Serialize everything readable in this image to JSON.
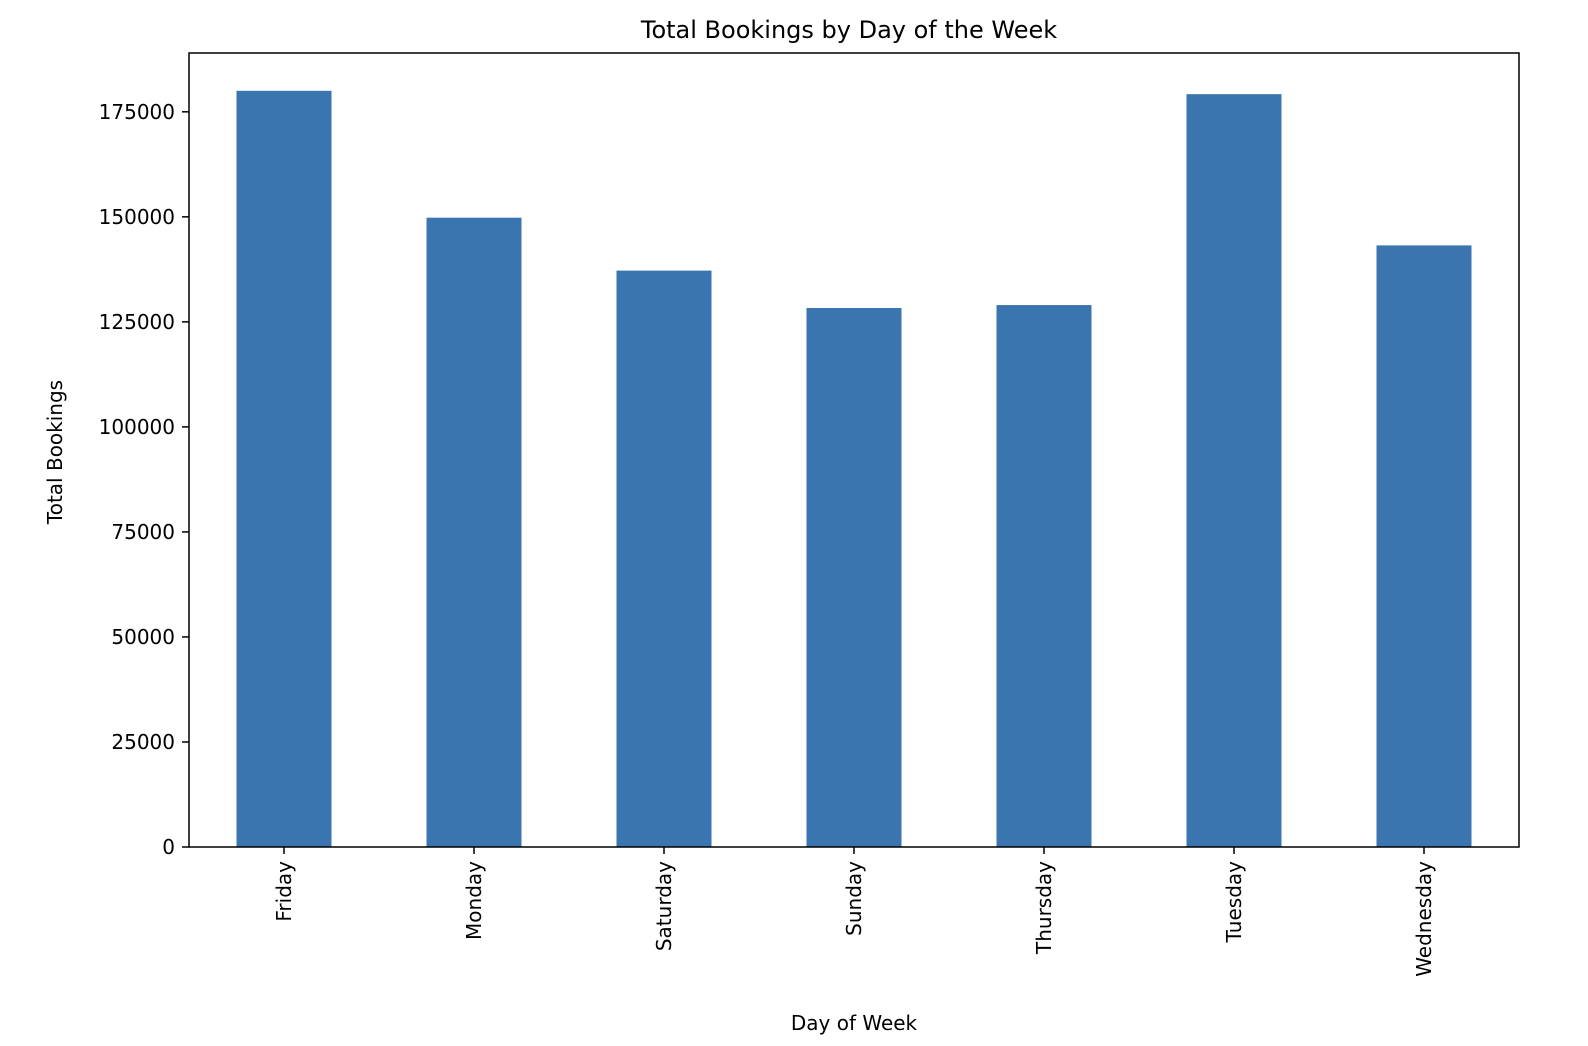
{
  "chart_data": {
    "type": "bar",
    "title": "Total Bookings by Day of the Week",
    "xlabel": "Day of Week",
    "ylabel": "Total Bookings",
    "categories": [
      "Friday",
      "Monday",
      "Saturday",
      "Sunday",
      "Thursday",
      "Tuesday",
      "Wednesday"
    ],
    "values": [
      180000,
      149800,
      137200,
      128300,
      129000,
      179200,
      143200
    ],
    "yticks": [
      0,
      25000,
      50000,
      75000,
      100000,
      125000,
      150000,
      175000
    ],
    "ylim": [
      0,
      189000
    ],
    "grid": false,
    "legend": "none",
    "bar_color": "#3a75af"
  }
}
